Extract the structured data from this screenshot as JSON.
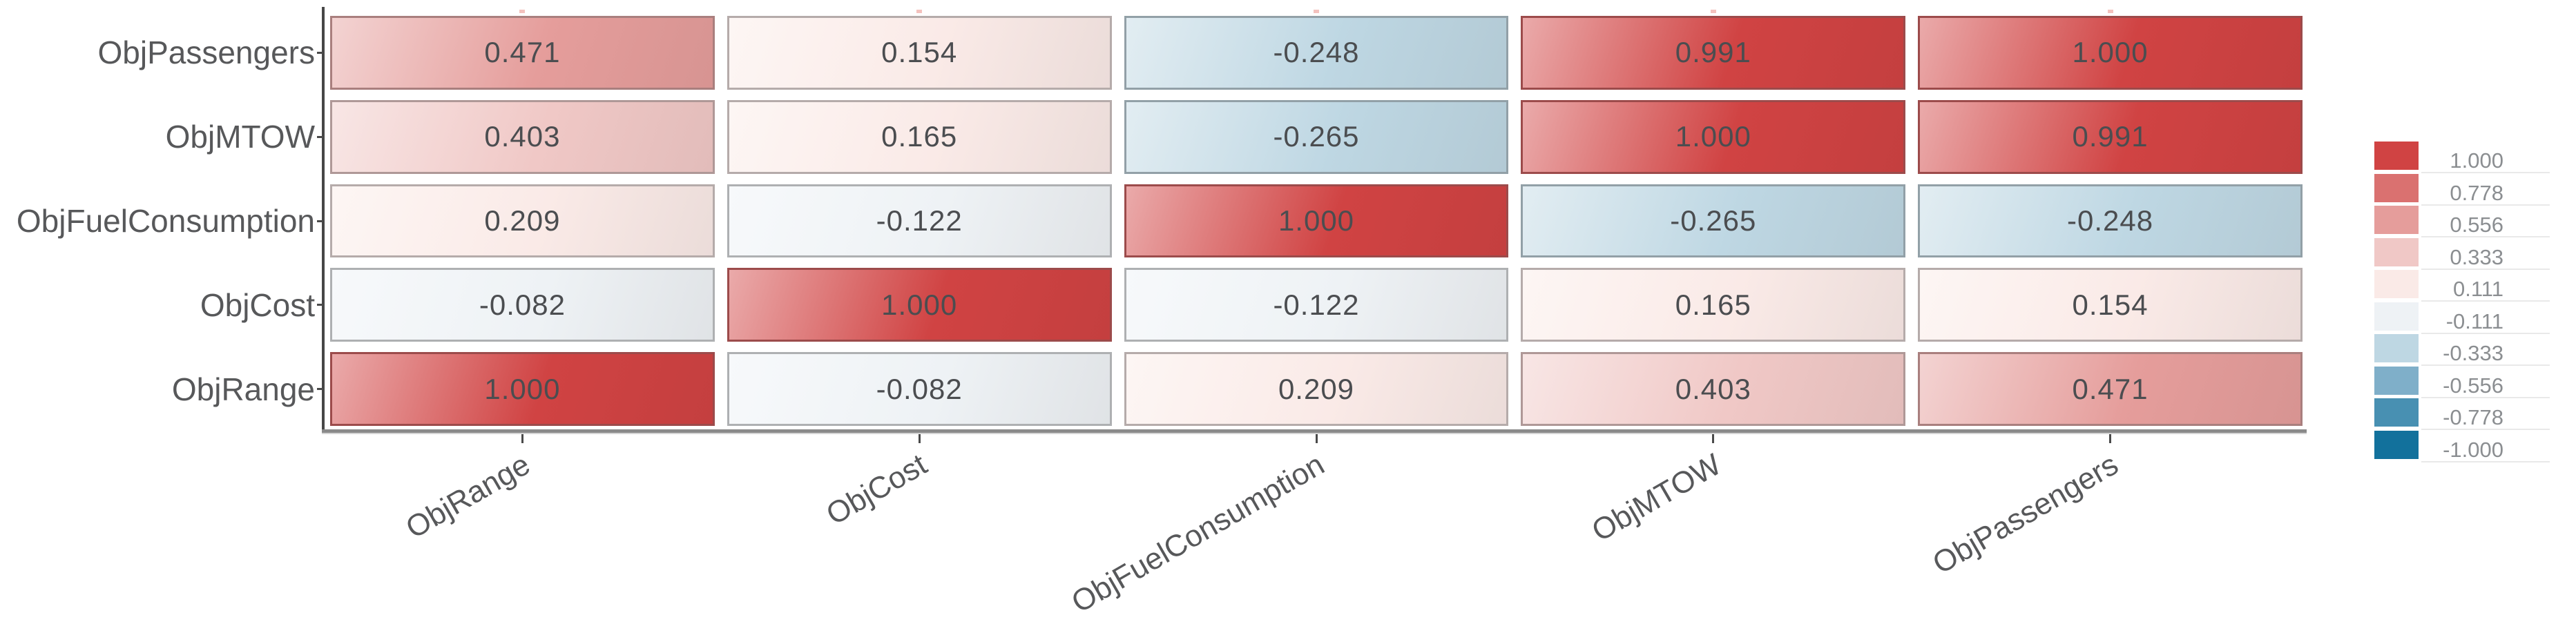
{
  "chart_data": {
    "type": "heatmap",
    "title": "",
    "x_categories": [
      "ObjRange",
      "ObjCost",
      "ObjFuelConsumption",
      "ObjMTOW",
      "ObjPassengers"
    ],
    "y_categories_top_to_bottom": [
      "ObjPassengers",
      "ObjMTOW",
      "ObjFuelConsumption",
      "ObjCost",
      "ObjRange"
    ],
    "values_by_row": [
      [
        0.471,
        0.154,
        -0.248,
        0.991,
        1.0
      ],
      [
        0.403,
        0.165,
        -0.265,
        1.0,
        0.991
      ],
      [
        0.209,
        -0.122,
        1.0,
        -0.265,
        -0.248
      ],
      [
        -0.082,
        1.0,
        -0.122,
        0.165,
        0.154
      ],
      [
        1.0,
        -0.082,
        0.209,
        0.403,
        0.471
      ]
    ],
    "cell_label_decimals": 3,
    "value_domain": [
      -1,
      1
    ],
    "legend": {
      "position": "right",
      "tick_labels": [
        "1.000",
        "0.778",
        "0.556",
        "0.333",
        "0.111",
        "-0.111",
        "-0.333",
        "-0.556",
        "-0.778",
        "-1.000"
      ],
      "colors": [
        "#d04343",
        "#da7170",
        "#e59d9b",
        "#f0c8c6",
        "#faeae7",
        "#eef2f5",
        "#bed7e3",
        "#7fafc9",
        "#4890b2",
        "#12719c"
      ]
    }
  },
  "style_colors": {
    "background": "#ffffff",
    "cell_text": "#4b4d50",
    "axis_label_text": "#57585a",
    "legend_text": "#8b8e91",
    "y_spine": "#474747",
    "x_baseline": "#8a8a8a",
    "tick": "#4a4a4a",
    "top_tick": "#f4c2be",
    "legend_separator": "#e9e9e9"
  }
}
